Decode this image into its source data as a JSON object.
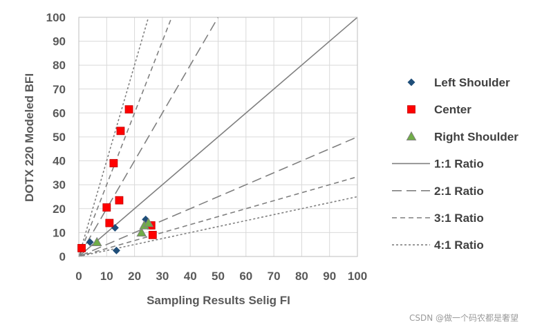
{
  "chart_data": {
    "type": "scatter",
    "xlabel": "Sampling Results Selig FI",
    "ylabel": "DOTX 220 Modeled BFI",
    "xlim": [
      0,
      100
    ],
    "ylim": [
      0,
      100
    ],
    "xticks": [
      "0",
      "10",
      "20",
      "30",
      "40",
      "50",
      "60",
      "70",
      "80",
      "90",
      "100"
    ],
    "yticks": [
      "0",
      "10",
      "20",
      "30",
      "40",
      "50",
      "60",
      "70",
      "80",
      "90",
      "100"
    ],
    "grid": true,
    "legend_position": "right",
    "series": [
      {
        "name": "Left Shoulder",
        "marker": "diamond",
        "color": "#1F4E79",
        "points": [
          [
            4,
            6
          ],
          [
            13,
            12
          ],
          [
            13.5,
            2.5
          ],
          [
            24,
            15.5
          ]
        ]
      },
      {
        "name": "Center",
        "marker": "square",
        "color": "#FF0000",
        "points": [
          [
            1,
            3.5
          ],
          [
            10,
            20.5
          ],
          [
            11,
            14
          ],
          [
            12.5,
            39
          ],
          [
            14.5,
            23.5
          ],
          [
            15,
            52.5
          ],
          [
            18,
            61.5
          ],
          [
            26,
            13
          ],
          [
            26.5,
            9
          ]
        ]
      },
      {
        "name": "Right Shoulder",
        "marker": "triangle",
        "color": "#70AD47",
        "points": [
          [
            6.5,
            6
          ],
          [
            22.5,
            10
          ],
          [
            23.5,
            13
          ],
          [
            25,
            14
          ]
        ]
      }
    ],
    "ratio_lines": [
      {
        "name": "1:1 Ratio",
        "slope": 1,
        "dash": "none"
      },
      {
        "name": "2:1 Ratio",
        "slope": 0.5,
        "dash": "14,7"
      },
      {
        "name": "3:1 Ratio",
        "slope": 0.3333,
        "dash": "7,5"
      },
      {
        "name": "4:1 Ratio",
        "slope": 0.25,
        "dash": "3,3"
      }
    ],
    "steep_lines": [
      {
        "slope": 2,
        "dash": "14,7"
      },
      {
        "slope": 3,
        "dash": "7,5"
      },
      {
        "slope": 4,
        "dash": "3,3"
      }
    ],
    "line_color": "#7F7F7F"
  },
  "watermark": "CSDN @做一个码农都是奢望"
}
